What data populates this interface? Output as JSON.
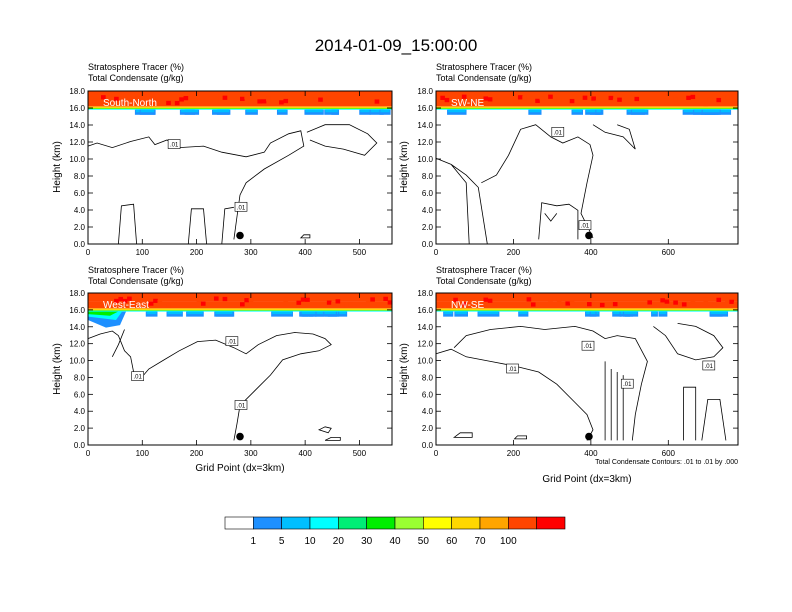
{
  "title": "2014-01-09_15:00:00",
  "colorbar": {
    "colors": [
      "#ffffff",
      "#1e90ff",
      "#00bfff",
      "#00ffff",
      "#00ee76",
      "#00ee00",
      "#9aff32",
      "#ffff00",
      "#ffd700",
      "#ffa500",
      "#ff4500",
      "#ff0000"
    ],
    "labels": [
      "1",
      "5",
      "10",
      "20",
      "30",
      "40",
      "50",
      "60",
      "70",
      "100"
    ]
  },
  "footnote": "Total Condensate Contours: .01 to .01 by .000",
  "chart_data": [
    {
      "type": "heatmap",
      "subtitle_line1": "Stratosphere Tracer   (%)",
      "subtitle_line2": "Total Condensate   (g/kg)",
      "section": "South-North",
      "ylabel": "Height (km)",
      "xlabel": "",
      "xlim": [
        0,
        560
      ],
      "ylim": [
        0,
        18
      ],
      "xticks": [
        "0",
        "100",
        "200",
        "300",
        "400",
        "500"
      ],
      "yticks": [
        "0.0",
        "2.0",
        "4.0",
        "6.0",
        "8.0",
        "10.0",
        "12.0",
        "14.0",
        "16.0",
        "18.0"
      ],
      "contour_level": ".01",
      "marker": {
        "x": 280,
        "y": 1.0
      }
    },
    {
      "type": "heatmap",
      "subtitle_line1": "Stratosphere Tracer   (%)",
      "subtitle_line2": "Total Condensate   (g/kg)",
      "section": "SW-NE",
      "ylabel": "Height (km)",
      "xlabel": "",
      "xlim": [
        0,
        780
      ],
      "ylim": [
        0,
        18
      ],
      "xticks": [
        "0",
        "200",
        "400",
        "600"
      ],
      "yticks": [
        "0.0",
        "2.0",
        "4.0",
        "6.0",
        "8.0",
        "10.0",
        "12.0",
        "14.0",
        "16.0",
        "18.0"
      ],
      "contour_level": ".01",
      "marker": {
        "x": 395,
        "y": 1.0
      }
    },
    {
      "type": "heatmap",
      "subtitle_line1": "Stratosphere Tracer   (%)",
      "subtitle_line2": "Total Condensate   (g/kg)",
      "section": "West-East",
      "ylabel": "Height (km)",
      "xlabel": "Grid Point (dx=3km)",
      "xlim": [
        0,
        560
      ],
      "ylim": [
        0,
        18
      ],
      "xticks": [
        "0",
        "100",
        "200",
        "300",
        "400",
        "500"
      ],
      "yticks": [
        "0.0",
        "2.0",
        "4.0",
        "6.0",
        "8.0",
        "10.0",
        "12.0",
        "14.0",
        "16.0",
        "18.0"
      ],
      "contour_level": ".01",
      "marker": {
        "x": 280,
        "y": 1.0
      }
    },
    {
      "type": "heatmap",
      "subtitle_line1": "Stratosphere Tracer   (%)",
      "subtitle_line2": "Total Condensate   (g/kg)",
      "section": "NW-SE",
      "ylabel": "Height (km)",
      "xlabel": "Grid Point (dx=3km)",
      "xlim": [
        0,
        780
      ],
      "ylim": [
        0,
        18
      ],
      "xticks": [
        "0",
        "200",
        "400",
        "600"
      ],
      "yticks": [
        "0.0",
        "2.0",
        "4.0",
        "6.0",
        "8.0",
        "10.0",
        "12.0",
        "14.0",
        "16.0",
        "18.0"
      ],
      "contour_level": ".01",
      "marker": {
        "x": 395,
        "y": 1.0
      }
    }
  ]
}
